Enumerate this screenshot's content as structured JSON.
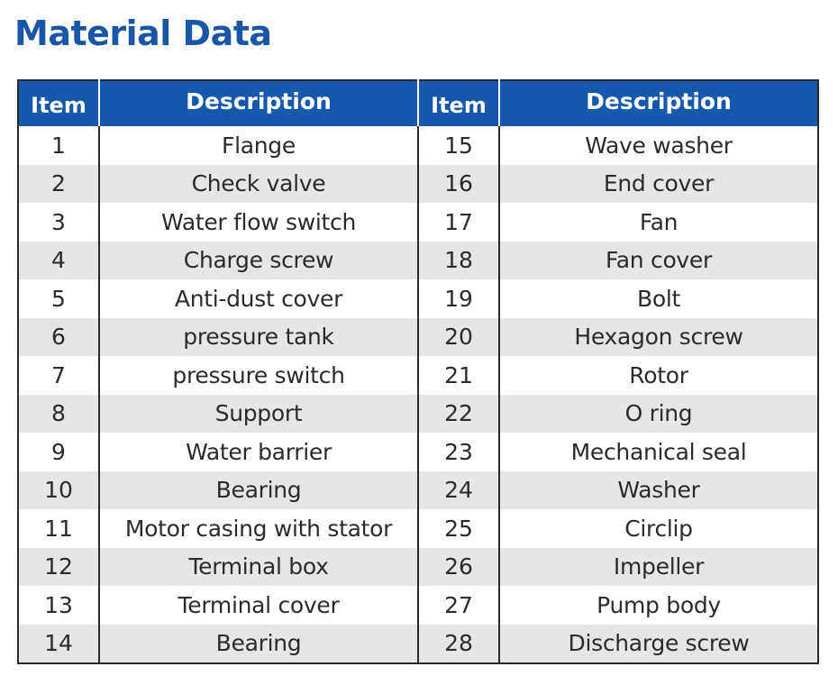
{
  "title": "Material Data",
  "headers": {
    "item": "Item",
    "description": "Description"
  },
  "rows": [
    {
      "left_item": "1",
      "left_desc": "Flange",
      "right_item": "15",
      "right_desc": "Wave washer"
    },
    {
      "left_item": "2",
      "left_desc": "Check valve",
      "right_item": "16",
      "right_desc": "End cover"
    },
    {
      "left_item": "3",
      "left_desc": "Water flow switch",
      "right_item": "17",
      "right_desc": "Fan"
    },
    {
      "left_item": "4",
      "left_desc": "Charge screw",
      "right_item": "18",
      "right_desc": "Fan cover"
    },
    {
      "left_item": "5",
      "left_desc": "Anti-dust cover",
      "right_item": "19",
      "right_desc": "Bolt"
    },
    {
      "left_item": "6",
      "left_desc": "pressure tank",
      "right_item": "20",
      "right_desc": "Hexagon screw"
    },
    {
      "left_item": "7",
      "left_desc": "pressure switch",
      "right_item": "21",
      "right_desc": "Rotor"
    },
    {
      "left_item": "8",
      "left_desc": "Support",
      "right_item": "22",
      "right_desc": "O ring"
    },
    {
      "left_item": "9",
      "left_desc": "Water barrier",
      "right_item": "23",
      "right_desc": "Mechanical seal"
    },
    {
      "left_item": "10",
      "left_desc": "Bearing",
      "right_item": "24",
      "right_desc": "Washer"
    },
    {
      "left_item": "11",
      "left_desc": "Motor casing with stator",
      "right_item": "25",
      "right_desc": "Circlip"
    },
    {
      "left_item": "12",
      "left_desc": "Terminal box",
      "right_item": "26",
      "right_desc": "Impeller"
    },
    {
      "left_item": "13",
      "left_desc": "Terminal cover",
      "right_item": "27",
      "right_desc": "Pump body"
    },
    {
      "left_item": "14",
      "left_desc": "Bearing",
      "right_item": "28",
      "right_desc": "Discharge screw"
    }
  ],
  "colors": {
    "title": "#1a56a6",
    "header_bg": "#1658ac",
    "header_text": "#ffffff",
    "row_alt_bg": "#e6e6e6",
    "border": "#2a2a2a"
  }
}
